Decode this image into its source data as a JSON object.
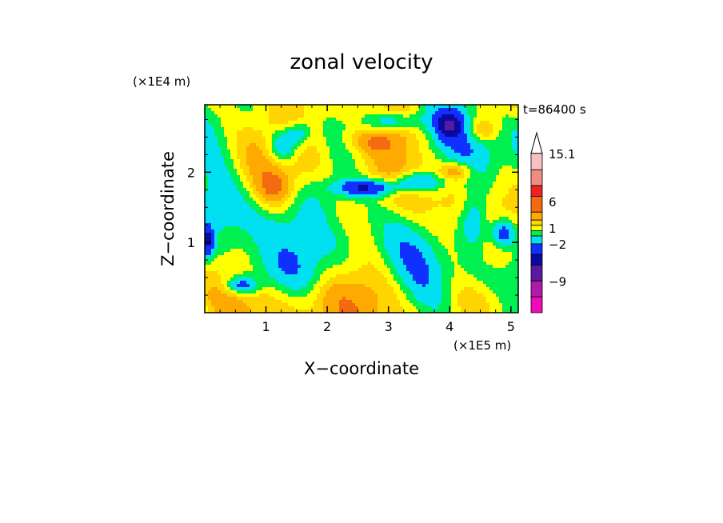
{
  "chart_data": {
    "type": "heatmap",
    "title": "zonal velocity",
    "xlabel": "X−coordinate",
    "ylabel": "Z−coordinate",
    "x_unit": "(×1E5 m)",
    "y_unit": "(×1E4 m)",
    "time_label": "t=86400 s",
    "xlim": [
      0,
      5.12
    ],
    "ylim": [
      0,
      2.96
    ],
    "x_ticks": [
      "1",
      "2",
      "3",
      "4",
      "5"
    ],
    "y_ticks": [
      "1",
      "2"
    ],
    "colorbar": {
      "labels": [
        "15.1",
        "6",
        "1",
        "−2",
        "−9"
      ],
      "label_values": [
        15.1,
        6,
        1,
        -2,
        -9
      ],
      "range": [
        -15,
        19
      ],
      "bands": [
        {
          "lo": 15.1,
          "hi": 19,
          "color": "#ffffff"
        },
        {
          "lo": 12,
          "hi": 15.1,
          "color": "#f6c2c0"
        },
        {
          "lo": 9,
          "hi": 12,
          "color": "#f08c82"
        },
        {
          "lo": 7,
          "hi": 9,
          "color": "#ee2222"
        },
        {
          "lo": 4,
          "hi": 7,
          "color": "#f36a10"
        },
        {
          "lo": 2.5,
          "hi": 4,
          "color": "#ffaa00"
        },
        {
          "lo": 1.5,
          "hi": 2.5,
          "color": "#ffd400"
        },
        {
          "lo": 0.5,
          "hi": 1.5,
          "color": "#ffff00"
        },
        {
          "lo": -0.5,
          "hi": 0.5,
          "color": "#00f050"
        },
        {
          "lo": -2,
          "hi": -0.5,
          "color": "#00e0f0"
        },
        {
          "lo": -4,
          "hi": -2,
          "color": "#1030ff"
        },
        {
          "lo": -6,
          "hi": -4,
          "color": "#0a0aa0"
        },
        {
          "lo": -9,
          "hi": -6,
          "color": "#5a1aa0"
        },
        {
          "lo": -12,
          "hi": -9,
          "color": "#b01aa8"
        },
        {
          "lo": -15,
          "hi": -12,
          "color": "#f00ab8"
        }
      ]
    }
  }
}
